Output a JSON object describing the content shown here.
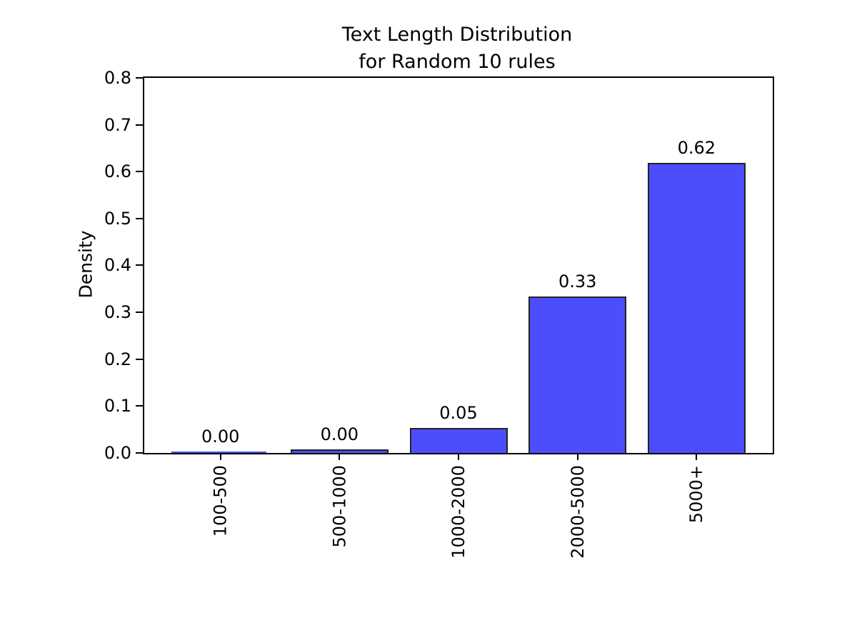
{
  "chart_data": {
    "type": "bar",
    "title": "Text Length Distribution\nfor Random 10 rules",
    "xlabel": "",
    "ylabel": "Density",
    "categories": [
      "100-500",
      "500-1000",
      "1000-2000",
      "2000-5000",
      "5000+"
    ],
    "values": [
      0.0,
      0.005,
      0.05,
      0.33,
      0.615
    ],
    "bar_labels": [
      "0.00",
      "0.00",
      "0.05",
      "0.33",
      "0.62"
    ],
    "yticks": [
      "0.0",
      "0.1",
      "0.2",
      "0.3",
      "0.4",
      "0.5",
      "0.6",
      "0.7",
      "0.8"
    ],
    "ylim": [
      0,
      0.8
    ],
    "grid": false,
    "legend": null,
    "colors": {
      "bar_fill": "#4C4DFC",
      "bar_edge": "#222222",
      "axis": "#000000",
      "background": "#ffffff"
    }
  }
}
